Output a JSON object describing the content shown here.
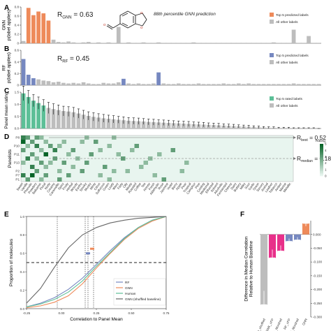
{
  "panel_letters": [
    "A",
    "B",
    "C",
    "D",
    "E",
    "F"
  ],
  "molecule_caption": "88th percentile GNN prediction",
  "chart_data": [
    {
      "id": "A",
      "type": "bar",
      "ylabel": "GNN\np(label applies)",
      "ylim": [
        0,
        0.8
      ],
      "yticks": [
        0,
        0.2,
        0.4,
        0.6,
        0.8
      ],
      "annotation": {
        "prefix": "R",
        "sub": "GNN",
        "value": "= 0.63"
      },
      "legend": [
        "Top 5 predicted labels",
        "All other labels"
      ],
      "highlight_color": "#ee8a5a",
      "other_color": "#bdbdbd",
      "values": [
        0.05,
        0.78,
        0.62,
        0.7,
        0.66,
        0.5,
        0.08,
        0.03,
        0.02,
        0.04,
        0.02,
        0.01,
        0.02,
        0.03,
        0.01,
        0.02,
        0.01,
        0.02,
        0.01,
        0.36,
        0.01,
        0.02,
        0.01,
        0.01,
        0.02,
        0.01,
        0.01,
        0.02,
        0.01,
        0.01,
        0.01,
        0.01,
        0.01,
        0.01,
        0.02,
        0.01,
        0.01,
        0.01,
        0.01,
        0.01,
        0.01,
        0.01,
        0.01,
        0.01,
        0.01,
        0.01,
        0.01,
        0.01,
        0.01,
        0.01,
        0.02,
        0.01,
        0.01,
        0.01,
        0.3,
        0.01,
        0.01,
        0.16,
        0.01,
        0.01
      ],
      "highlight_indices": [
        1,
        2,
        3,
        4,
        5
      ]
    },
    {
      "id": "B",
      "type": "bar",
      "ylabel": "RF\np(label applies)",
      "ylim": [
        0,
        0.6
      ],
      "yticks": [
        0,
        0.2,
        0.4,
        0.6
      ],
      "annotation": {
        "prefix": "R",
        "sub": "RF",
        "value": "= 0.45"
      },
      "legend": [
        "Top 5 predicted labels",
        "All other labels"
      ],
      "highlight_color": "#7688c0",
      "other_color": "#bdbdbd",
      "values": [
        0.45,
        0.18,
        0.12,
        0.1,
        0.08,
        0.07,
        0.05,
        0.06,
        0.04,
        0.03,
        0.04,
        0.03,
        0.05,
        0.03,
        0.02,
        0.02,
        0.04,
        0.03,
        0.03,
        0.05,
        0.11,
        0.03,
        0.02,
        0.03,
        0.02,
        0.02,
        0.03,
        0.22,
        0.03,
        0.02,
        0.02,
        0.03,
        0.02,
        0.02,
        0.02,
        0.03,
        0.02,
        0.02,
        0.02,
        0.02,
        0.03,
        0.02,
        0.02,
        0.03,
        0.02,
        0.03,
        0.02,
        0.02,
        0.02,
        0.02,
        0.02,
        0.02,
        0.02,
        0.02,
        0.03,
        0.02,
        0.02,
        0.02,
        0.02,
        0.02
      ],
      "highlight_indices": [
        0,
        1,
        2,
        20,
        27
      ]
    },
    {
      "id": "C",
      "type": "bar",
      "ylabel": "Panel mean rating",
      "ylim": [
        0,
        1.5
      ],
      "yticks": [
        0.0,
        0.5,
        1.0,
        1.5
      ],
      "legend": [
        "Top 5 rated labels",
        "All other labels"
      ],
      "highlight_color": "#5cbf97",
      "other_color": "#bdbdbd",
      "values": [
        1.45,
        1.3,
        1.15,
        1.05,
        0.95,
        0.85,
        0.8,
        0.76,
        0.72,
        0.7,
        0.67,
        0.62,
        0.57,
        0.52,
        0.48,
        0.45,
        0.42,
        0.4,
        0.38,
        0.36,
        0.34,
        0.32,
        0.31,
        0.3,
        0.29,
        0.27,
        0.26,
        0.25,
        0.24,
        0.23,
        0.22,
        0.21,
        0.2,
        0.19,
        0.18,
        0.17,
        0.16,
        0.15,
        0.14,
        0.13,
        0.12,
        0.11,
        0.1,
        0.09,
        0.08,
        0.07,
        0.06,
        0.05,
        0.04,
        0.03,
        0.03,
        0.02,
        0.02,
        0.02,
        0.01,
        0.01,
        0.01,
        0.01,
        0.01,
        0.0
      ],
      "errors": [
        0.3,
        0.27,
        0.25,
        0.25,
        0.24,
        0.23,
        0.22,
        0.21,
        0.2,
        0.2,
        0.2,
        0.19,
        0.18,
        0.17,
        0.17,
        0.16,
        0.16,
        0.15,
        0.15,
        0.14,
        0.14,
        0.13,
        0.13,
        0.13,
        0.12,
        0.12,
        0.12,
        0.11,
        0.11,
        0.11,
        0.1,
        0.1,
        0.1,
        0.1,
        0.09,
        0.09,
        0.09,
        0.08,
        0.08,
        0.08,
        0.07,
        0.07,
        0.07,
        0.06,
        0.06,
        0.06,
        0.05,
        0.05,
        0.04,
        0.04,
        0.04,
        0.03,
        0.03,
        0.03,
        0.02,
        0.02,
        0.02,
        0.02,
        0.02,
        0.0
      ],
      "highlight_indices": [
        0,
        1,
        2,
        3,
        4
      ]
    },
    {
      "id": "D",
      "type": "heatmap",
      "ylabel": "Panelists",
      "rows": [
        "P8",
        "P12",
        "P10",
        "P4",
        "P11",
        "P3",
        "P13",
        "P9",
        "P2",
        "P7",
        "P1"
      ],
      "row_tick_labels": [
        "P8",
        "",
        "P10",
        "",
        "P11",
        "",
        "P13",
        "",
        "P2",
        "P7",
        "P1"
      ],
      "colorbar_title": "Rating",
      "colorbar_ticks": [
        5,
        4,
        3,
        2,
        1,
        0
      ],
      "vmax": 5,
      "cells": [
        [
          0,
          0,
          4
        ],
        [
          0,
          1,
          3
        ],
        [
          0,
          3,
          3
        ],
        [
          0,
          4,
          2
        ],
        [
          0,
          14,
          2
        ],
        [
          0,
          20,
          2
        ],
        [
          1,
          0,
          5
        ],
        [
          1,
          2,
          3
        ],
        [
          1,
          5,
          2
        ],
        [
          1,
          9,
          2
        ],
        [
          1,
          13,
          2
        ],
        [
          1,
          16,
          3
        ],
        [
          2,
          1,
          2
        ],
        [
          2,
          3,
          4
        ],
        [
          2,
          6,
          3
        ],
        [
          2,
          8,
          2
        ],
        [
          2,
          19,
          2
        ],
        [
          2,
          25,
          3
        ],
        [
          3,
          0,
          3
        ],
        [
          3,
          4,
          2
        ],
        [
          3,
          7,
          4
        ],
        [
          3,
          11,
          3
        ],
        [
          3,
          17,
          2
        ],
        [
          3,
          24,
          2
        ],
        [
          3,
          33,
          3
        ],
        [
          4,
          2,
          3
        ],
        [
          4,
          5,
          5
        ],
        [
          4,
          10,
          2
        ],
        [
          4,
          15,
          3
        ],
        [
          4,
          21,
          2
        ],
        [
          4,
          30,
          2
        ],
        [
          5,
          1,
          4
        ],
        [
          5,
          3,
          2
        ],
        [
          5,
          7,
          3
        ],
        [
          5,
          12,
          2
        ],
        [
          5,
          22,
          3
        ],
        [
          5,
          28,
          2
        ],
        [
          6,
          0,
          2
        ],
        [
          6,
          4,
          3
        ],
        [
          6,
          6,
          2
        ],
        [
          6,
          9,
          3
        ],
        [
          6,
          14,
          3
        ],
        [
          6,
          27,
          2
        ],
        [
          6,
          36,
          2
        ],
        [
          7,
          2,
          4
        ],
        [
          7,
          5,
          2
        ],
        [
          7,
          11,
          2
        ],
        [
          7,
          18,
          3
        ],
        [
          7,
          26,
          2
        ],
        [
          8,
          3,
          3
        ],
        [
          8,
          8,
          2
        ],
        [
          8,
          13,
          3
        ],
        [
          8,
          20,
          2
        ],
        [
          8,
          23,
          2
        ],
        [
          8,
          35,
          2
        ],
        [
          9,
          0,
          4
        ],
        [
          9,
          2,
          5
        ],
        [
          9,
          5,
          3
        ],
        [
          9,
          10,
          3
        ],
        [
          9,
          17,
          2
        ],
        [
          9,
          29,
          2
        ],
        [
          10,
          1,
          3
        ],
        [
          10,
          4,
          2
        ],
        [
          10,
          8,
          3
        ],
        [
          10,
          19,
          2
        ],
        [
          10,
          31,
          3
        ]
      ],
      "annotations": [
        {
          "prefix": "R",
          "sub": "best",
          "value": "= 0.52",
          "row": 0
        },
        {
          "prefix": "R",
          "sub": "median",
          "value": "= 0.18",
          "row": 5
        }
      ]
    },
    {
      "id": "D_labels",
      "type": "table",
      "labels": [
        "Sweet",
        "Vanilla",
        "Phenolic",
        "Powdery",
        "Balsamic",
        "Floral",
        "Nutty",
        "Creamy",
        "Caramellic",
        "Spicy",
        "Fruity",
        "Herbal",
        "Woody",
        "Earthy",
        "Smoky",
        "Musky",
        "Minty",
        "Citrus",
        "Sulfurous",
        "Green",
        "Leafy",
        "Waxy",
        "Fatty",
        "Oily",
        "Meaty",
        "Roasted",
        "Coffee",
        "Tea",
        "Honey",
        "Fresh",
        "Aldehydic",
        "Rose",
        "Jasmine",
        "Violet",
        "Berry",
        "Apple",
        "Pear",
        "Tropical",
        "Camphor",
        "Pine",
        "Cooling",
        "Medicinal",
        "Ethereal",
        "Solvent",
        "Alcoholic",
        "Fermented",
        "Cheesy",
        "Dairy",
        "Buttery",
        "Milky",
        "Sour",
        "Garlic",
        "Onion",
        "Savory",
        "Animal",
        "Leather",
        "Tobacco",
        "Amber",
        "Marine",
        "Metallic"
      ]
    },
    {
      "id": "E",
      "type": "line",
      "xlabel": "Correlation to Panel Mean",
      "ylabel": "Proportion of molecules",
      "xlim": [
        -0.25,
        0.75
      ],
      "ylim": [
        0,
        1.0
      ],
      "xticks": [
        -0.25,
        0.0,
        0.25,
        0.5,
        0.75
      ],
      "yticks": [
        0.0,
        0.2,
        0.4,
        0.6,
        0.8,
        1.0
      ],
      "hline": 0.5,
      "vlines": [
        -0.03,
        0.17,
        0.19,
        0.23
      ],
      "series": [
        {
          "name": "RF",
          "color": "#7688c0",
          "x": [
            -0.25,
            -0.15,
            -0.05,
            0.05,
            0.15,
            0.25,
            0.35,
            0.45,
            0.55,
            0.65,
            0.75
          ],
          "y": [
            0.02,
            0.06,
            0.12,
            0.21,
            0.33,
            0.48,
            0.63,
            0.77,
            0.88,
            0.96,
            1.0
          ]
        },
        {
          "name": "GNN",
          "color": "#ee8a5a",
          "x": [
            -0.25,
            -0.15,
            -0.05,
            0.05,
            0.15,
            0.25,
            0.35,
            0.45,
            0.55,
            0.65,
            0.75
          ],
          "y": [
            0.01,
            0.03,
            0.07,
            0.14,
            0.27,
            0.44,
            0.6,
            0.75,
            0.87,
            0.95,
            1.0
          ]
        },
        {
          "name": "Human",
          "color": "#5cbf97",
          "x": [
            -0.25,
            -0.15,
            -0.05,
            0.05,
            0.15,
            0.25,
            0.35,
            0.45,
            0.55,
            0.65,
            0.75
          ],
          "y": [
            0.02,
            0.05,
            0.1,
            0.18,
            0.3,
            0.46,
            0.61,
            0.76,
            0.88,
            0.96,
            1.0
          ]
        },
        {
          "name": "GNN (shuffled baseline)",
          "color": "#666666",
          "x": [
            -0.25,
            -0.15,
            -0.05,
            0.05,
            0.15,
            0.25,
            0.35,
            0.45,
            0.55,
            0.65,
            0.75
          ],
          "y": [
            0.06,
            0.22,
            0.45,
            0.66,
            0.8,
            0.88,
            0.93,
            0.96,
            0.98,
            0.99,
            1.0
          ]
        }
      ],
      "median_markers": [
        {
          "x": 0.19,
          "y": 0.6,
          "color": "#7688c0"
        },
        {
          "x": 0.22,
          "y": 0.65,
          "color": "#ee8a5a"
        }
      ]
    },
    {
      "id": "F",
      "type": "bar",
      "ylabel": "Difference in Median Correlation\nRelative to Human Baseline",
      "ylim": [
        -0.3,
        0.05
      ],
      "yticks": [
        "0.000",
        "-0.050",
        "-0.100",
        "-0.150",
        "-0.200",
        "-0.250",
        "-0.300"
      ],
      "ytick_values": [
        0,
        -0.05,
        -0.1,
        -0.15,
        -0.2,
        -0.25,
        -0.3
      ],
      "categories": [
        "GNN_shuffled",
        "RWK_cFP",
        "RWK_Mordred",
        "RF_cFP",
        "RF_Mordred",
        "GNN"
      ],
      "values": [
        -0.255,
        -0.085,
        -0.06,
        -0.025,
        -0.02,
        0.04
      ],
      "colors": [
        "#bdbdbd",
        "#e8308a",
        "#e8308a",
        "#7688c0",
        "#7688c0",
        "#ee8a5a"
      ],
      "errors": [
        0.05,
        0.03,
        0.02,
        0.01,
        0.01,
        0.01
      ]
    }
  ]
}
